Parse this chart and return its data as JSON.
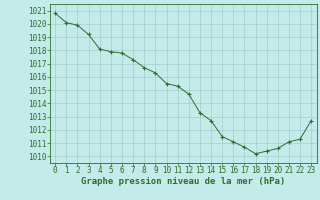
{
  "x": [
    0,
    1,
    2,
    3,
    4,
    5,
    6,
    7,
    8,
    9,
    10,
    11,
    12,
    13,
    14,
    15,
    16,
    17,
    18,
    19,
    20,
    21,
    22,
    23
  ],
  "y": [
    1020.8,
    1020.1,
    1019.9,
    1019.2,
    1018.1,
    1017.9,
    1017.8,
    1017.3,
    1016.7,
    1016.3,
    1015.5,
    1015.3,
    1014.7,
    1013.3,
    1012.7,
    1011.5,
    1011.1,
    1010.7,
    1010.2,
    1010.4,
    1010.6,
    1011.1,
    1011.3,
    1012.7
  ],
  "ylim": [
    1009.5,
    1021.5
  ],
  "xlim": [
    -0.5,
    23.5
  ],
  "yticks": [
    1010,
    1011,
    1012,
    1013,
    1014,
    1015,
    1016,
    1017,
    1018,
    1019,
    1020,
    1021
  ],
  "xticks": [
    0,
    1,
    2,
    3,
    4,
    5,
    6,
    7,
    8,
    9,
    10,
    11,
    12,
    13,
    14,
    15,
    16,
    17,
    18,
    19,
    20,
    21,
    22,
    23
  ],
  "line_color": "#2d6e2d",
  "marker_color": "#2d6e2d",
  "bg_color": "#c5eaea",
  "grid_color": "#a8cccc",
  "xlabel": "Graphe pression niveau de la mer (hPa)",
  "xlabel_color": "#2d6e2d",
  "tick_color": "#2d6e2d",
  "xlabel_fontsize": 6.5,
  "tick_fontsize": 5.5
}
